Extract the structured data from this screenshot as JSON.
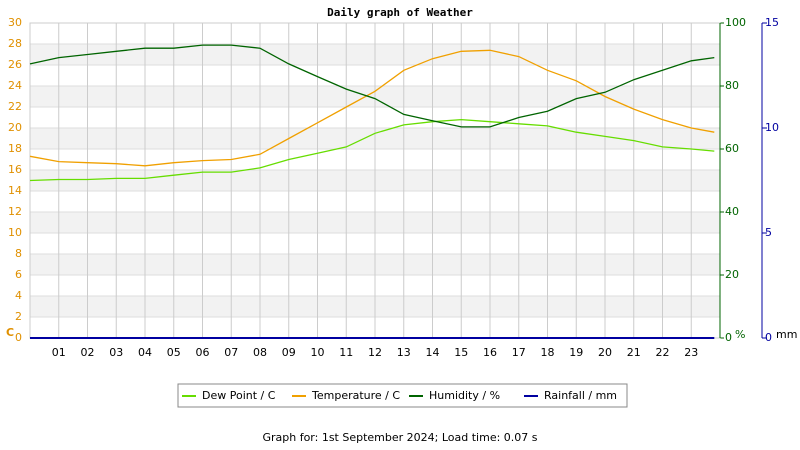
{
  "chart_data": {
    "type": "line",
    "title": "Daily graph of Weather",
    "footer": "Graph for: 1st September 2024; Load time: 0.07 s",
    "y_unit": "C",
    "y2_unit": "%",
    "y3_unit": "mm",
    "x": [
      0,
      1,
      2,
      3,
      4,
      5,
      6,
      7,
      8,
      9,
      10,
      11,
      12,
      13,
      14,
      15,
      16,
      17,
      18,
      19,
      20,
      21,
      22,
      23,
      23.8
    ],
    "xlim": [
      0,
      24
    ],
    "xticks": [
      {
        "value": 1,
        "label": "01"
      },
      {
        "value": 2,
        "label": "02"
      },
      {
        "value": 3,
        "label": "03"
      },
      {
        "value": 4,
        "label": "04"
      },
      {
        "value": 5,
        "label": "05"
      },
      {
        "value": 6,
        "label": "06"
      },
      {
        "value": 7,
        "label": "07"
      },
      {
        "value": 8,
        "label": "08"
      },
      {
        "value": 9,
        "label": "09"
      },
      10,
      11,
      12,
      13,
      14,
      15,
      16,
      17,
      18,
      19,
      20,
      21,
      22,
      23
    ],
    "ylim": [
      0,
      30
    ],
    "yticks": [
      0,
      2,
      4,
      6,
      8,
      10,
      12,
      14,
      16,
      18,
      20,
      22,
      24,
      26,
      28,
      30
    ],
    "y2lim": [
      0,
      100
    ],
    "y2ticks": [
      0,
      20,
      40,
      60,
      80,
      100
    ],
    "y3lim": [
      0,
      15
    ],
    "y3ticks": [
      0,
      5,
      10,
      15
    ],
    "grid": true,
    "series": [
      {
        "name": "Dew Point / C",
        "color": "#66dd00",
        "values": [
          15.0,
          15.1,
          15.1,
          15.2,
          15.2,
          15.5,
          15.8,
          15.8,
          16.2,
          17.0,
          17.6,
          18.2,
          19.5,
          20.3,
          20.6,
          20.8,
          20.6,
          20.4,
          20.2,
          19.6,
          19.2,
          18.8,
          18.2,
          18.0,
          17.8
        ]
      },
      {
        "name": "Temperature / C",
        "color": "#f0a000",
        "values": [
          17.3,
          16.8,
          16.7,
          16.6,
          16.4,
          16.7,
          16.9,
          17.0,
          17.5,
          19.0,
          20.5,
          22.0,
          23.5,
          25.5,
          26.6,
          27.3,
          27.4,
          26.8,
          25.5,
          24.5,
          23.0,
          21.8,
          20.8,
          20.0,
          19.6
        ]
      },
      {
        "name": "Humidity / %",
        "color": "#006400",
        "axis": "y2",
        "values": [
          87,
          89,
          90,
          91,
          92,
          92,
          93,
          93,
          92,
          87,
          83,
          79,
          76,
          71,
          69,
          67,
          67,
          70,
          72,
          76,
          78,
          82,
          85,
          88,
          89
        ]
      },
      {
        "name": "Rainfall / mm",
        "color": "#0000a0",
        "axis": "y3",
        "values": [
          0,
          0,
          0,
          0,
          0,
          0,
          0,
          0,
          0,
          0,
          0,
          0,
          0,
          0,
          0,
          0,
          0,
          0,
          0,
          0,
          0,
          0,
          0,
          0,
          0
        ]
      }
    ]
  }
}
